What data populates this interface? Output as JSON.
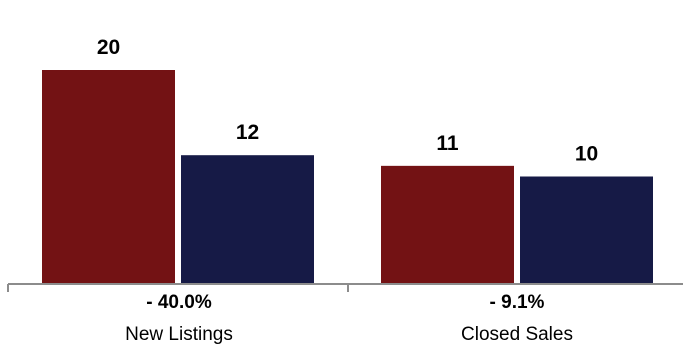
{
  "chart_data": {
    "type": "bar",
    "categories": [
      "New Listings",
      "Closed Sales"
    ],
    "changes": [
      "- 40.0%",
      "- 9.1%"
    ],
    "series": [
      {
        "values": [
          20,
          11
        ],
        "color": "#731214"
      },
      {
        "values": [
          12,
          10
        ],
        "color": "#161a46"
      }
    ],
    "ylim": [
      0,
      20
    ],
    "grid": false,
    "legend": "none",
    "axis_color": "#8c8c8c"
  }
}
